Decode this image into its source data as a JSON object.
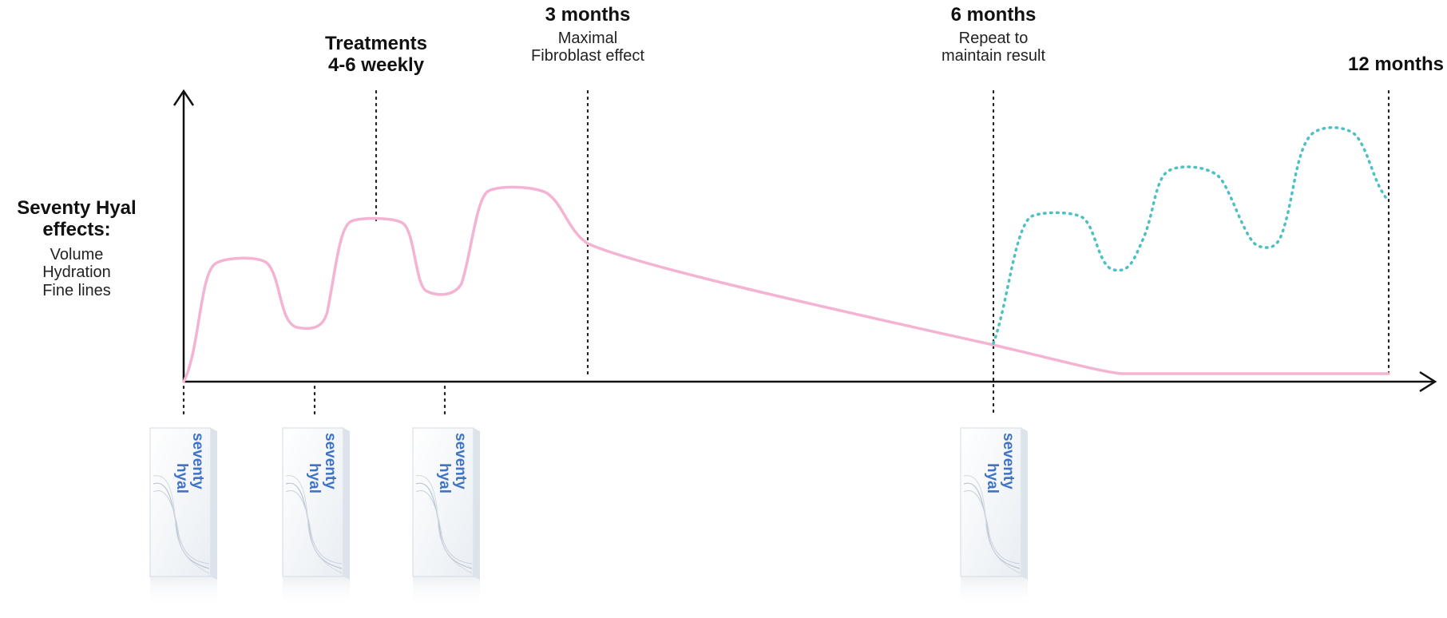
{
  "y_label": {
    "title_line1": "Seventy Hyal",
    "title_line2": "effects:",
    "items": [
      "Volume",
      "Hydration",
      "Fine lines"
    ]
  },
  "milestones": {
    "treatments": {
      "title_line1": "Treatments",
      "title_line2": "4-6 weekly"
    },
    "three_months": {
      "title": "3 months",
      "note_line1": "Maximal",
      "note_line2": "Fibroblast effect"
    },
    "six_months": {
      "title": "6 months",
      "note_line1": "Repeat to",
      "note_line2": "maintain result"
    },
    "twelve_months": {
      "title": "12 months"
    }
  },
  "product": {
    "brand_line1": "seventy",
    "brand_line2": "hyal"
  },
  "colors": {
    "initial_curve": "#f4b3d2",
    "maintenance_curve": "#4cc0c3",
    "axis": "#111111",
    "brand_text": "#3f73c8"
  }
}
